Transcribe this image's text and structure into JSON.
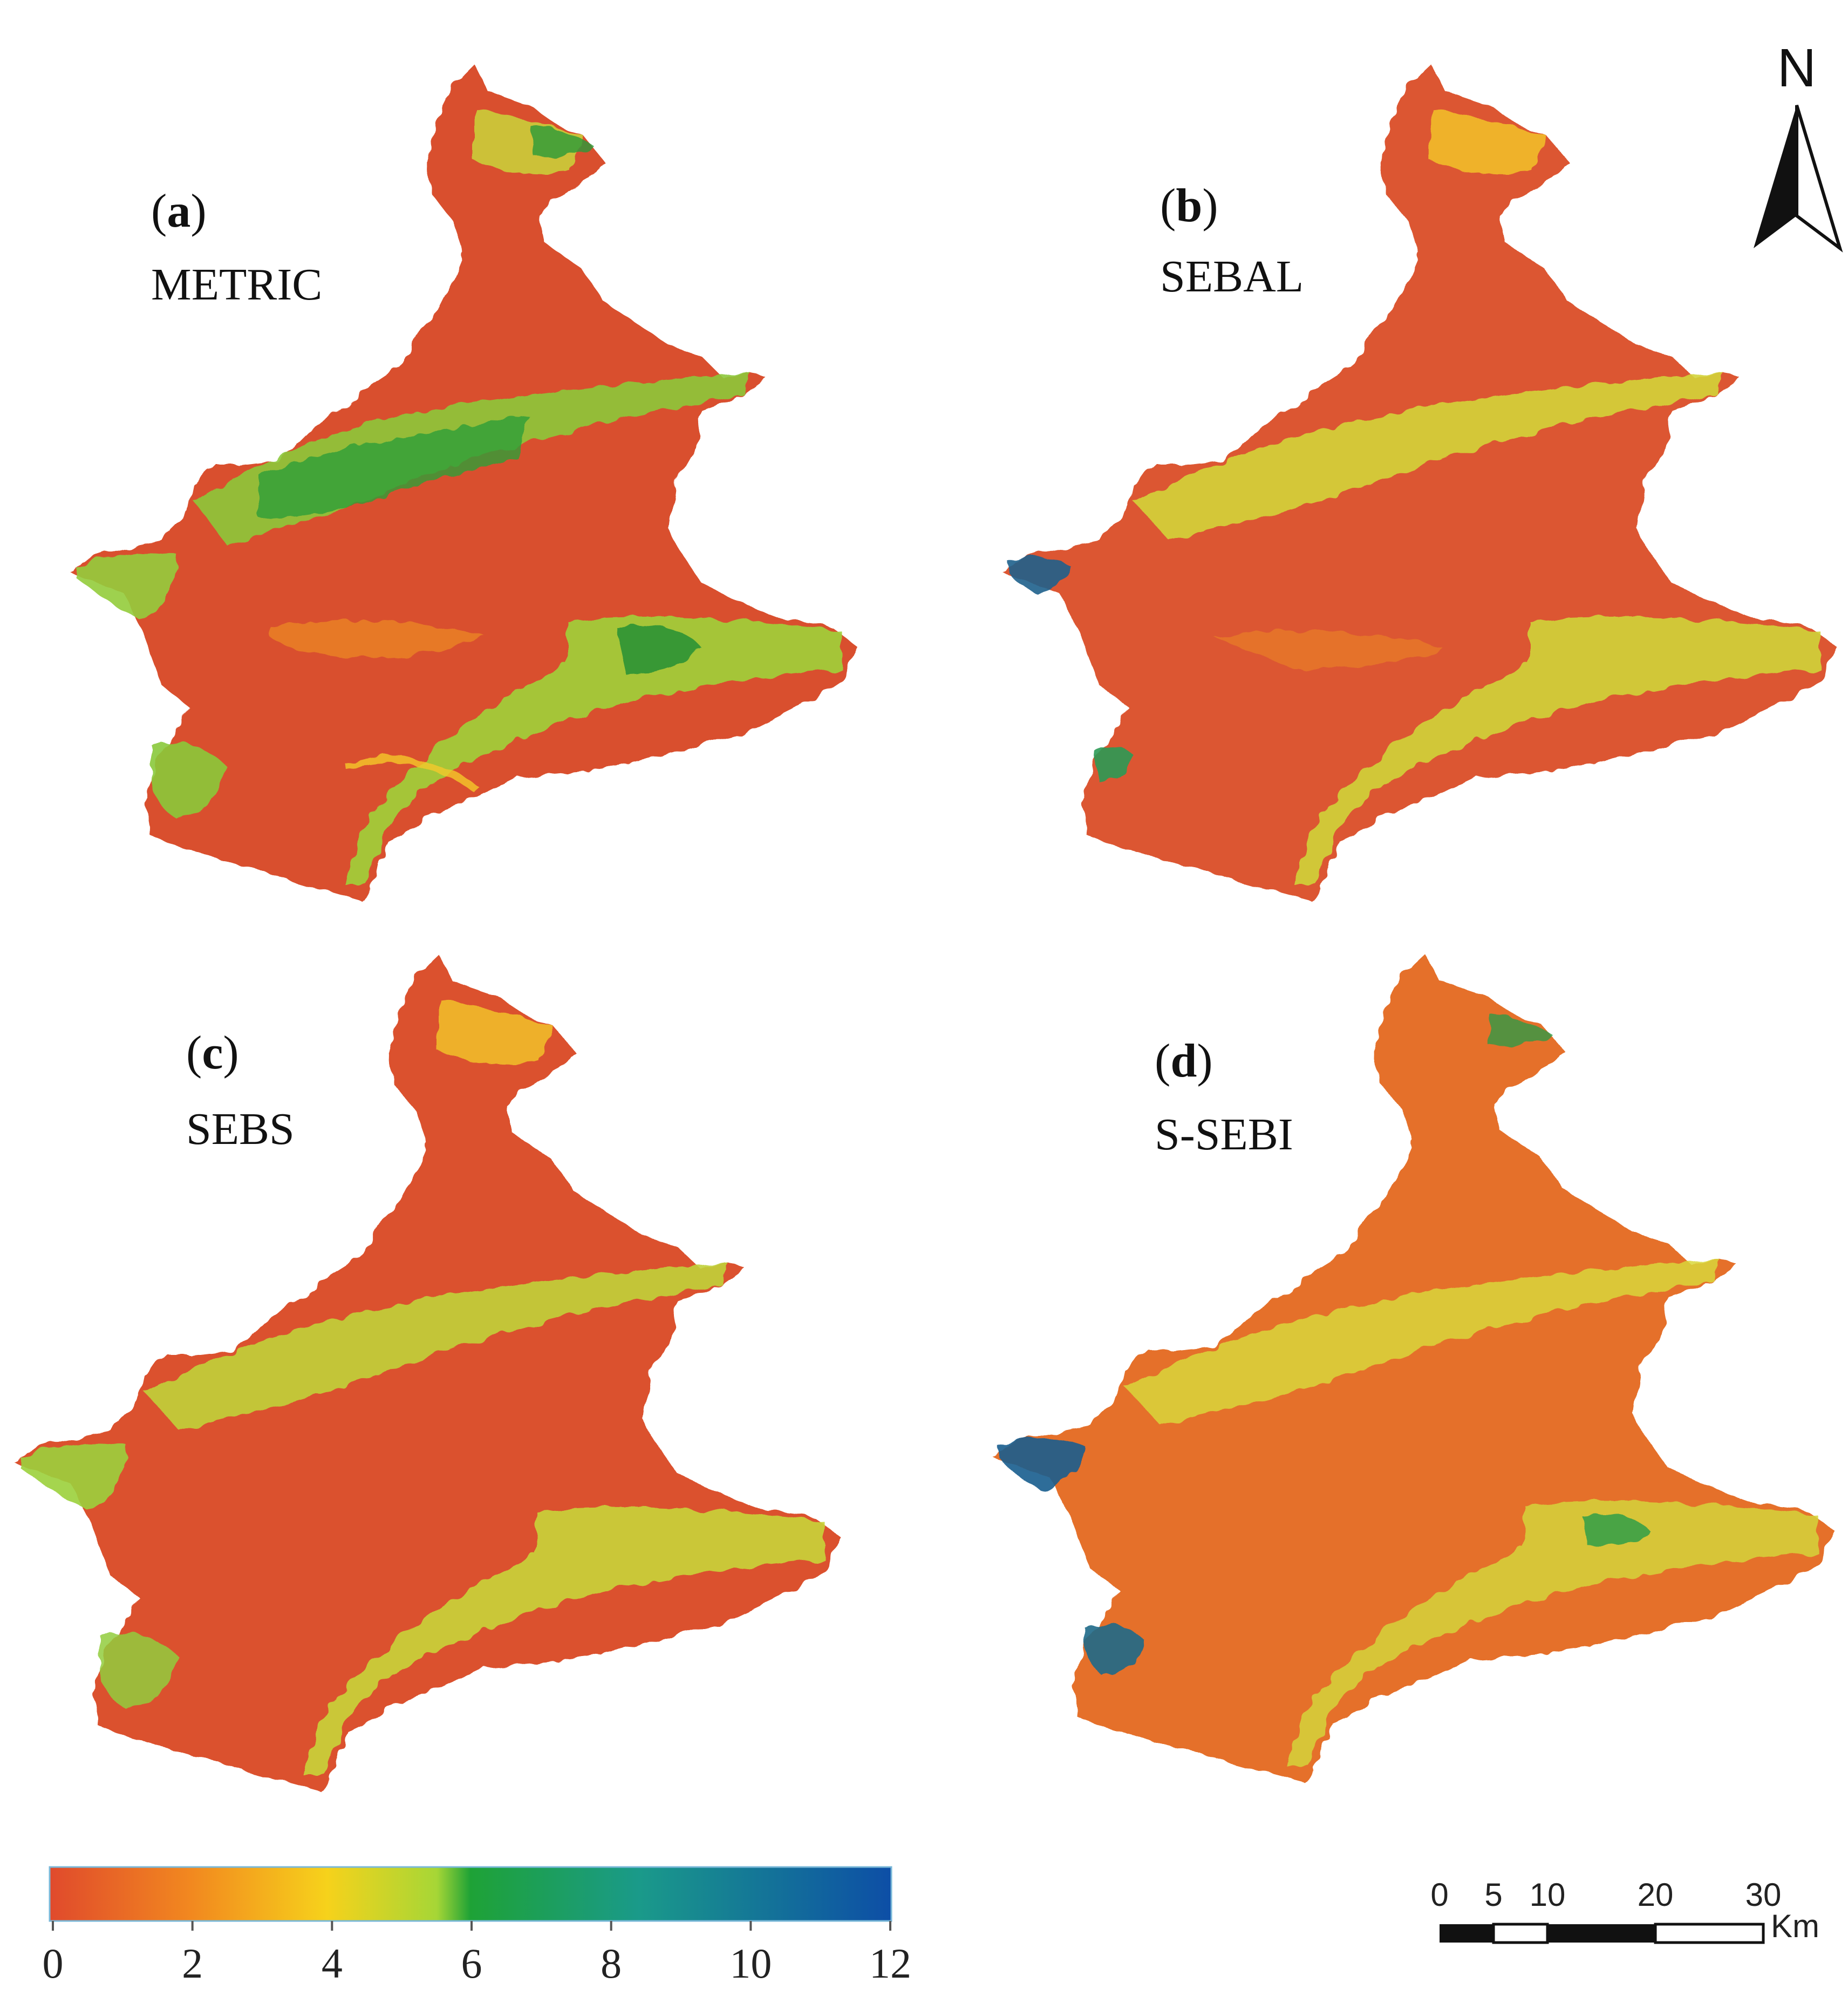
{
  "panels": [
    {
      "id": "a",
      "method": "METRIC"
    },
    {
      "id": "b",
      "method": "SEBAL"
    },
    {
      "id": "c",
      "method": "SEBS"
    },
    {
      "id": "d",
      "method": "S-SEBI"
    }
  ],
  "legend": {
    "ticks": [
      "0",
      "2",
      "4",
      "6",
      "8",
      "10",
      "12"
    ],
    "range": [
      0,
      12
    ],
    "colors": [
      "#e04a2c",
      "#f2891f",
      "#f6d21b",
      "#a6d636",
      "#1ea236",
      "#1a9a8a",
      "#0d4ea6"
    ]
  },
  "north_arrow": {
    "label": "N"
  },
  "scale_bar": {
    "ticks": [
      "0",
      "5",
      "10",
      "20",
      "30"
    ],
    "unit": "Km"
  }
}
